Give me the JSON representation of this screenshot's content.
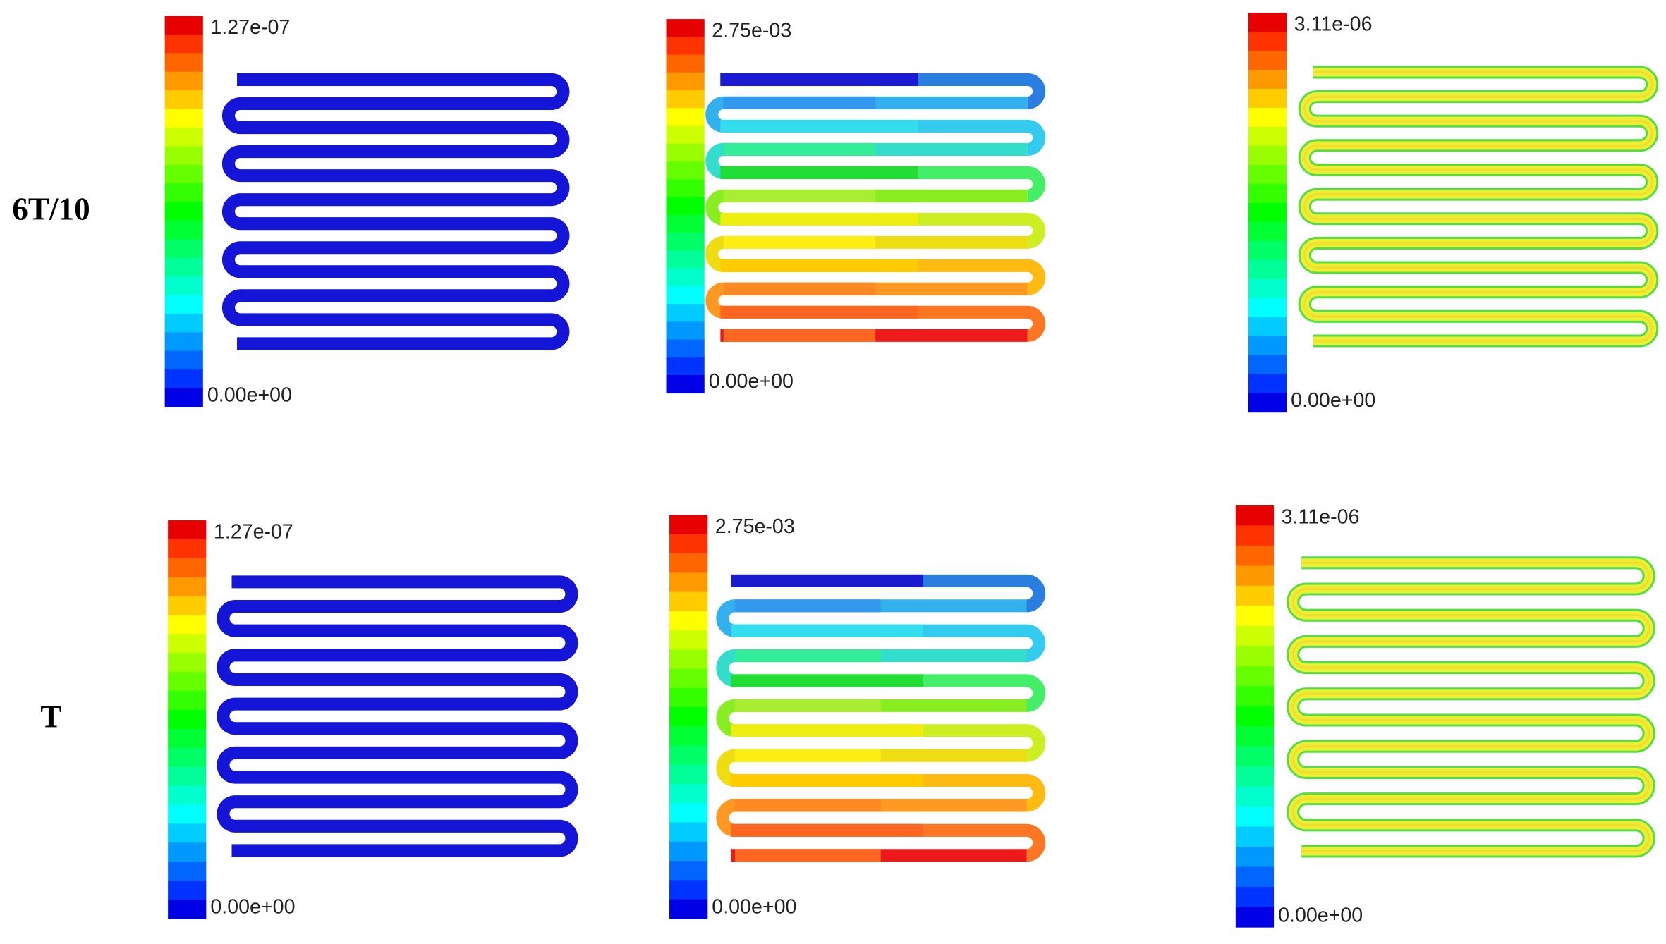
{
  "rows": [
    {
      "label": "6T/10",
      "panels": [
        {
          "max": "1.27e-07",
          "min": "0.00e+00"
        },
        {
          "max": "2.75e-03",
          "min": "0.00e+00"
        },
        {
          "max": "3.11e-06",
          "min": "0.00e+00"
        }
      ]
    },
    {
      "label": "T",
      "panels": [
        {
          "max": "1.27e-07",
          "min": "0.00e+00"
        },
        {
          "max": "2.75e-03",
          "min": "0.00e+00"
        },
        {
          "max": "3.11e-06",
          "min": "0.00e+00"
        }
      ]
    }
  ]
}
